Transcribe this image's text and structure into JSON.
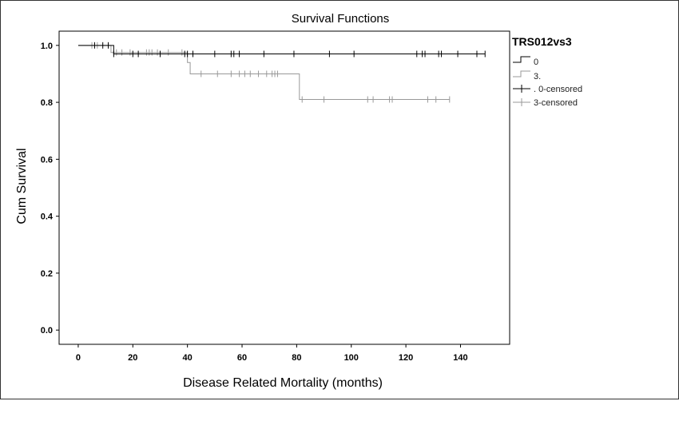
{
  "chart_data": {
    "type": "line",
    "subtype": "kaplan-meier-step",
    "title": "Survival Functions",
    "xlabel": "Disease Related Mortality (months)",
    "ylabel": "Cum Survival",
    "xlim": [
      -7,
      158
    ],
    "ylim": [
      -0.05,
      1.05
    ],
    "xticks": [
      0,
      20,
      40,
      60,
      80,
      100,
      120,
      140
    ],
    "yticks": [
      0.0,
      0.2,
      0.4,
      0.6,
      0.8,
      1.0
    ],
    "xtick_labels": [
      "0",
      "20",
      "40",
      "60",
      "80",
      "100",
      "120",
      "140"
    ],
    "ytick_labels": [
      "0.0",
      "0.2",
      "0.4",
      "0.6",
      "0.8",
      "1.0"
    ],
    "grid": false,
    "legend": {
      "title": "TRS012vs3",
      "placement": "right",
      "entries": [
        "0",
        "3.",
        ". 0-censored",
        "3-censored"
      ]
    },
    "series": [
      {
        "name": "0",
        "color": "#000000",
        "step_x": [
          0,
          13,
          149
        ],
        "step_y": [
          1.0,
          0.97,
          0.97
        ],
        "censored": [
          {
            "x": 6,
            "y": 1.0
          },
          {
            "x": 9,
            "y": 1.0
          },
          {
            "x": 11,
            "y": 1.0
          },
          {
            "x": 13,
            "y": 0.97
          },
          {
            "x": 20,
            "y": 0.97
          },
          {
            "x": 22,
            "y": 0.97
          },
          {
            "x": 30,
            "y": 0.97
          },
          {
            "x": 39,
            "y": 0.97
          },
          {
            "x": 40,
            "y": 0.97
          },
          {
            "x": 42,
            "y": 0.97
          },
          {
            "x": 50,
            "y": 0.97
          },
          {
            "x": 56,
            "y": 0.97
          },
          {
            "x": 57,
            "y": 0.97
          },
          {
            "x": 59,
            "y": 0.97
          },
          {
            "x": 68,
            "y": 0.97
          },
          {
            "x": 79,
            "y": 0.97
          },
          {
            "x": 92,
            "y": 0.97
          },
          {
            "x": 101,
            "y": 0.97
          },
          {
            "x": 124,
            "y": 0.97
          },
          {
            "x": 126,
            "y": 0.97
          },
          {
            "x": 127,
            "y": 0.97
          },
          {
            "x": 132,
            "y": 0.97
          },
          {
            "x": 133,
            "y": 0.97
          },
          {
            "x": 139,
            "y": 0.97
          },
          {
            "x": 146,
            "y": 0.97
          },
          {
            "x": 149,
            "y": 0.97
          }
        ]
      },
      {
        "name": "3",
        "color": "#999999",
        "step_x": [
          0,
          12,
          40,
          41,
          81,
          136
        ],
        "step_y": [
          1.0,
          0.975,
          0.94,
          0.9,
          0.81,
          0.81
        ],
        "censored": [
          {
            "x": 5,
            "y": 1.0
          },
          {
            "x": 7,
            "y": 1.0
          },
          {
            "x": 14,
            "y": 0.975
          },
          {
            "x": 16,
            "y": 0.975
          },
          {
            "x": 19,
            "y": 0.975
          },
          {
            "x": 25,
            "y": 0.975
          },
          {
            "x": 26,
            "y": 0.975
          },
          {
            "x": 27,
            "y": 0.975
          },
          {
            "x": 29,
            "y": 0.975
          },
          {
            "x": 33,
            "y": 0.975
          },
          {
            "x": 38,
            "y": 0.975
          },
          {
            "x": 45,
            "y": 0.9
          },
          {
            "x": 51,
            "y": 0.9
          },
          {
            "x": 56,
            "y": 0.9
          },
          {
            "x": 59,
            "y": 0.9
          },
          {
            "x": 61,
            "y": 0.9
          },
          {
            "x": 63,
            "y": 0.9
          },
          {
            "x": 66,
            "y": 0.9
          },
          {
            "x": 69,
            "y": 0.9
          },
          {
            "x": 71,
            "y": 0.9
          },
          {
            "x": 72,
            "y": 0.9
          },
          {
            "x": 73,
            "y": 0.9
          },
          {
            "x": 82,
            "y": 0.81
          },
          {
            "x": 90,
            "y": 0.81
          },
          {
            "x": 106,
            "y": 0.81
          },
          {
            "x": 108,
            "y": 0.81
          },
          {
            "x": 114,
            "y": 0.81
          },
          {
            "x": 115,
            "y": 0.81
          },
          {
            "x": 128,
            "y": 0.81
          },
          {
            "x": 131,
            "y": 0.81
          },
          {
            "x": 136,
            "y": 0.81
          }
        ]
      }
    ]
  }
}
